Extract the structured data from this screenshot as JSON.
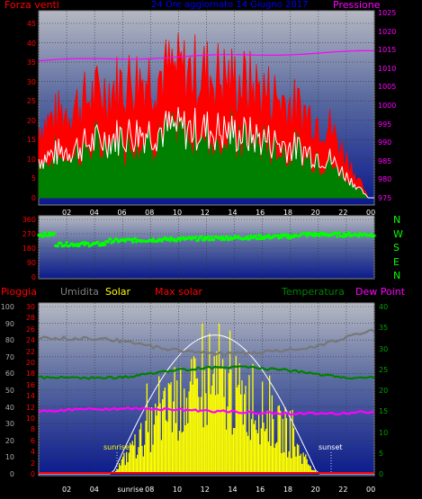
{
  "top_panel": {
    "left_title": "Forza venti",
    "center_title": "24 Ore aggiornato 14 Giugno 2017",
    "right_title": "Pressione",
    "left_ticks": [
      "45",
      "40",
      "35",
      "30",
      "25",
      "20",
      "15",
      "10",
      "5",
      "0"
    ],
    "right_ticks": [
      "1025",
      "1020",
      "1015",
      "1010",
      "1005",
      "1000",
      "995",
      "990",
      "985",
      "980",
      "975"
    ],
    "x_ticks": [
      "02",
      "04",
      "06",
      "08",
      "10",
      "12",
      "14",
      "16",
      "18",
      "20",
      "22",
      "00"
    ]
  },
  "mid_panel": {
    "left_ticks": [
      "360",
      "270",
      "180",
      "90",
      "0"
    ],
    "compass": [
      "N",
      "W",
      "S",
      "E",
      "N"
    ]
  },
  "bottom_panel": {
    "legend": {
      "rain": "Pioggia",
      "humidity": "Umidita",
      "solar": "Solar",
      "max_solar": "Max solar",
      "temperature": "Temperatura",
      "dew_point": "Dew Point"
    },
    "hum_ticks": [
      "100",
      "90",
      "80",
      "70",
      "60",
      "50",
      "40",
      "30",
      "20",
      "10",
      "0"
    ],
    "solar_ticks": [
      "30",
      "28",
      "26",
      "24",
      "22",
      "20",
      "18",
      "16",
      "14",
      "12",
      "10",
      "8",
      "6",
      "4",
      "2",
      "0"
    ],
    "temp_ticks": [
      "40",
      "35",
      "30",
      "25",
      "20",
      "15",
      "10",
      "5",
      "0"
    ],
    "x_ticks": [
      "02",
      "04",
      "sunrise",
      "08",
      "10",
      "12",
      "14",
      "16",
      "18",
      "20",
      "22",
      "00"
    ],
    "sunrise_label": "sunrise",
    "sunset_label": "sunset"
  },
  "colors": {
    "gust": "#ff0000",
    "wind": "#008000",
    "avg": "#ffffff",
    "pressure": "#ff00ff",
    "direction": "#00ff00",
    "solar": "#ffff00",
    "humidity": "#808080",
    "temp": "#008000",
    "dew": "#ff00ff"
  }
}
